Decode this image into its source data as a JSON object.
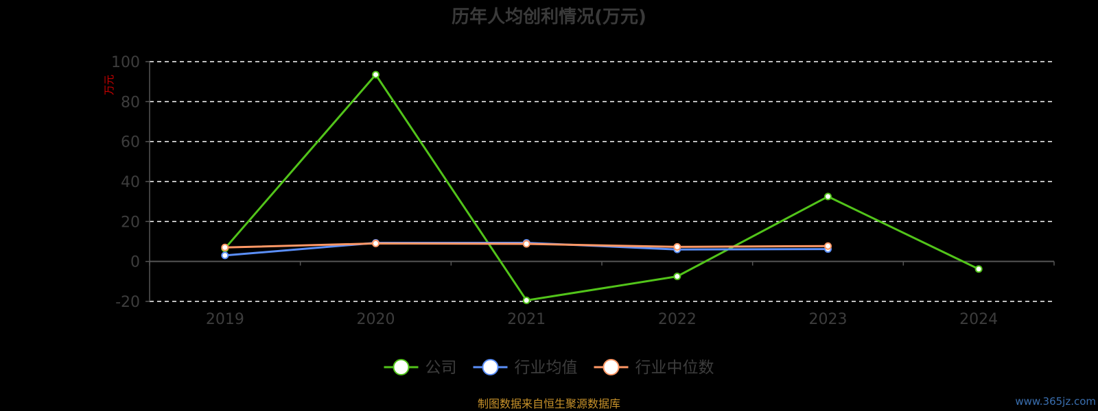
{
  "colors": {
    "background": "#000000",
    "title": "#3a3a3a",
    "axis_text": "#3d3d3d",
    "grid": "#ffffff",
    "axis_line": "#555555",
    "unit": "#cc0000",
    "source": "#c8922a",
    "watermark": "#3a6fb0"
  },
  "chart_data": {
    "type": "line",
    "title": "历年人均创利情况(万元)",
    "ylabel": "万元",
    "xlabel": "",
    "categories": [
      "2019",
      "2020",
      "2021",
      "2022",
      "2023",
      "2024"
    ],
    "ylim": [
      -20,
      100
    ],
    "yticks": [
      -20,
      0,
      20,
      40,
      60,
      80,
      100
    ],
    "grid": true,
    "legend_position": "bottom",
    "series": [
      {
        "name": "公司",
        "color": "#52c41a",
        "values": [
          6.5,
          93.5,
          -19.5,
          -7.5,
          32.5,
          -3.8
        ]
      },
      {
        "name": "行业均值",
        "color": "#5b8ff9",
        "values": [
          3,
          9.3,
          9.3,
          6,
          6.2,
          null
        ]
      },
      {
        "name": "行业中位数",
        "color": "#ff9866",
        "values": [
          7,
          9,
          8.8,
          7.3,
          7.7,
          null
        ]
      }
    ]
  },
  "footer": {
    "source": "制图数据来自恒生聚源数据库",
    "watermark": "www.365jz.com"
  }
}
